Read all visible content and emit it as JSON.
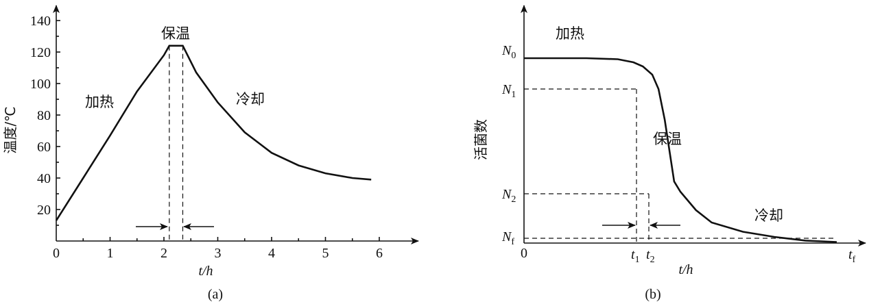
{
  "chart_data": [
    {
      "panel": "(a)",
      "type": "line",
      "xlabel": "t/h",
      "ylabel": "温度/℃",
      "x_ticks": [
        "0",
        "1",
        "2",
        "3",
        "4",
        "5",
        "6"
      ],
      "y_ticks": [
        "20",
        "40",
        "60",
        "80",
        "100",
        "120",
        "140"
      ],
      "xlim": [
        0,
        6.6
      ],
      "ylim": [
        0,
        150
      ],
      "series": [
        {
          "x": [
            0,
            0.5,
            1.0,
            1.5,
            2.0,
            2.1,
            2.35,
            2.6,
            3.0,
            3.5,
            4.0,
            4.5,
            5.0,
            5.5,
            5.85
          ],
          "y": [
            13,
            40,
            67,
            95,
            118,
            124,
            124,
            107,
            88,
            69,
            56,
            48,
            43,
            40,
            39
          ]
        }
      ],
      "vlines": [
        2.1,
        2.35
      ],
      "annotations": [
        "加热",
        "保温",
        "冷却"
      ]
    },
    {
      "panel": "(b)",
      "type": "line",
      "xlabel": "t/h",
      "ylabel": "活菌数",
      "x_ticks": [
        "0",
        "t1",
        "t2",
        "tf"
      ],
      "y_ticks": [
        "N0",
        "N1",
        "N2",
        "Nf"
      ],
      "series": [
        {
          "x": [
            0,
            0.2,
            0.3,
            0.35,
            0.38,
            0.41,
            0.43,
            0.45,
            0.48,
            0.5,
            0.55,
            0.6,
            0.7,
            0.8,
            0.9,
            1.0
          ],
          "y": [
            0.9,
            0.9,
            0.895,
            0.88,
            0.86,
            0.82,
            0.75,
            0.6,
            0.3,
            0.25,
            0.16,
            0.1,
            0.055,
            0.03,
            0.012,
            0.005
          ]
        }
      ],
      "hlines": [
        "N1",
        "N2",
        "Nf"
      ],
      "vlines": [
        "t1",
        "t2"
      ],
      "annotations": [
        "加热",
        "保温",
        "冷却"
      ]
    }
  ],
  "text": {
    "a_ylabel": "温度/℃",
    "a_xlabel": "t/h",
    "a_heat": "加热",
    "a_hold": "保温",
    "a_cool": "冷却",
    "a_panel": "(a)",
    "b_ylabel": "活菌数",
    "b_xlabel": "t/h",
    "b_heat": "加热",
    "b_hold": "保温",
    "b_cool": "冷却",
    "b_panel": "(b)",
    "b_x0": "0",
    "b_t": "t",
    "b_sub1": "1",
    "b_sub2": "2",
    "b_subf": "f",
    "b_N": "N",
    "b_n0": "0",
    "b_n1": "1",
    "b_n2": "2",
    "b_nf": "f"
  }
}
